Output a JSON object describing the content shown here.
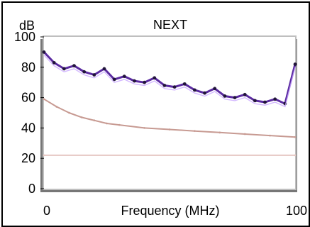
{
  "chart_data": {
    "type": "line",
    "title": "NEXT",
    "xlabel": "Frequency (MHz)",
    "ylabel": "dB",
    "xlim": [
      0,
      100
    ],
    "ylim": [
      0,
      100
    ],
    "x_ticks": [
      "0",
      "100"
    ],
    "y_ticks": [
      "0",
      "20",
      "40",
      "60",
      "80",
      "100"
    ],
    "grid": false,
    "colors": {
      "measured": "#5a2aa0",
      "measured_alt": "#1a1030",
      "highlight": "#c9a8ff",
      "limit": "#c79a92",
      "lower_limit": "#e6c7c2",
      "plot_border": "#bfbfbf",
      "plot_shadow": "#777777"
    },
    "series": [
      {
        "role": "measured",
        "x": [
          0,
          4,
          8,
          12,
          16,
          20,
          24,
          28,
          32,
          36,
          40,
          44,
          48,
          52,
          56,
          60,
          64,
          68,
          72,
          76,
          80,
          84,
          88,
          92,
          96,
          100
        ],
        "y": [
          90,
          83,
          79,
          81,
          77,
          75,
          79,
          72,
          74,
          71,
          70,
          73,
          68,
          67,
          69,
          65,
          63,
          66,
          61,
          60,
          62,
          58,
          57,
          59,
          56,
          82
        ]
      },
      {
        "role": "limit",
        "x": [
          0,
          5,
          10,
          15,
          20,
          25,
          30,
          40,
          50,
          60,
          70,
          80,
          90,
          100
        ],
        "y": [
          59,
          54,
          50,
          47,
          45,
          43,
          42,
          40,
          39,
          38,
          37,
          36,
          35,
          34
        ]
      },
      {
        "role": "lower_limit",
        "x": [
          0,
          100
        ],
        "y": [
          22,
          22
        ]
      }
    ]
  }
}
